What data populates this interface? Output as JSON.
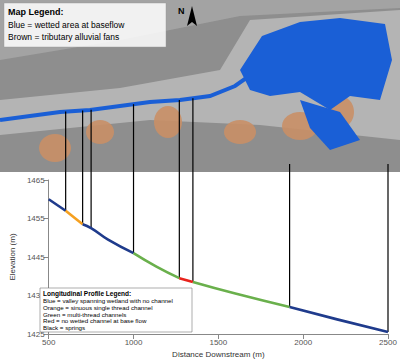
{
  "chart_data": {
    "type": "line",
    "x_label": "Distance Downstream (m)",
    "y_label": "Elevation (m)",
    "xlim": [
      500,
      2500
    ],
    "xticks": [
      500,
      1000,
      1500,
      2000,
      2500
    ],
    "ylim": [
      1425,
      1465
    ],
    "yticks": [
      1425,
      1435,
      1445,
      1455,
      1465
    ],
    "grid": false,
    "series": [
      {
        "type": "line",
        "color": "#1f3b8c",
        "x": [
          500,
          550,
          600
        ],
        "values": [
          1460,
          1458.5,
          1457
        ]
      },
      {
        "type": "line",
        "color": "#f5a020",
        "x": [
          600,
          700
        ],
        "values": [
          1457,
          1453.5
        ]
      },
      {
        "type": "line",
        "color": "#1f3b8c",
        "x": [
          700,
          750,
          850,
          1000
        ],
        "values": [
          1453.5,
          1452.5,
          1449.5,
          1446
        ]
      },
      {
        "type": "line",
        "color": "#6ab04c",
        "x": [
          1000,
          1135,
          1270
        ],
        "values": [
          1446,
          1442.5,
          1439.5
        ]
      },
      {
        "type": "line",
        "color": "#e8231c",
        "x": [
          1270,
          1350
        ],
        "values": [
          1439.5,
          1438.5
        ]
      },
      {
        "type": "line",
        "color": "#6ab04c",
        "x": [
          1350,
          1600,
          1920
        ],
        "values": [
          1438.5,
          1435.5,
          1432
        ]
      },
      {
        "type": "line",
        "color": "#1f3b8c",
        "x": [
          1920,
          2200,
          2500
        ],
        "values": [
          1432,
          1428.8,
          1425.5
        ]
      },
      {
        "type": "vline",
        "color": "#000000",
        "x": [
          600,
          700,
          750,
          1000,
          1270,
          1350,
          1920,
          2500
        ],
        "values": [
          1457,
          1453.5,
          1452.5,
          1446,
          1439.5,
          1438.5,
          1432,
          1425.5
        ]
      }
    ],
    "map_legend": {
      "title": "Map Legend:",
      "items": [
        "Blue = wetted area at baseflow",
        "Brown = tributary alluvial fans"
      ]
    },
    "north_label": "N",
    "profile_legend": {
      "title": "Longitudinal Profile Legend:",
      "items": [
        "Blue = valley spanning wetland with no channel",
        "Orange = sinuous single thread channel",
        "Green = multi-thread channels",
        "Red = no wetted channel at base flow",
        "Black = springs"
      ]
    }
  }
}
